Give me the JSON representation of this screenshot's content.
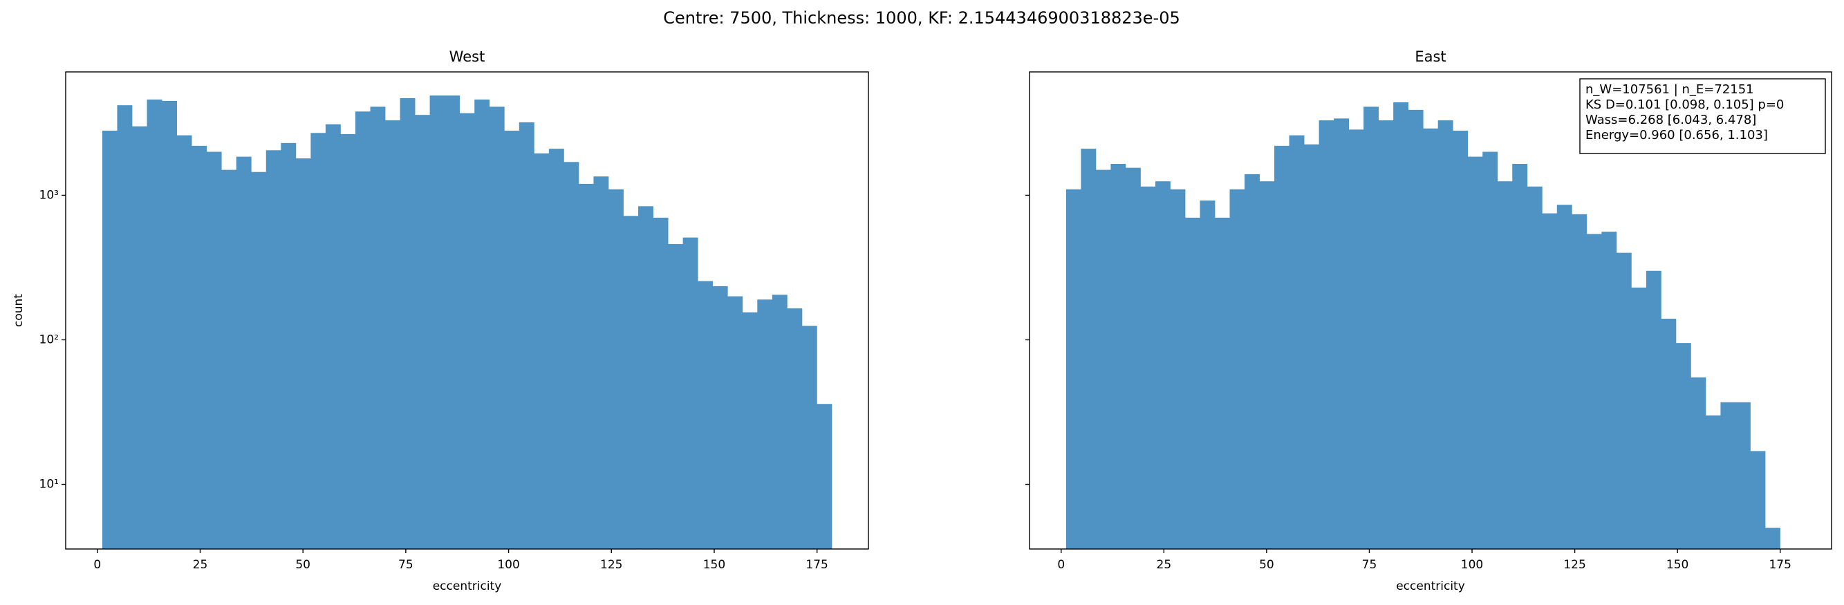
{
  "suptitle": "Centre: 7500, Thickness: 1000, KF: 2.1544346900318823e-05",
  "chart_data": [
    {
      "type": "histogram",
      "title": "West",
      "xlabel": "eccentricity",
      "ylabel": "count",
      "color": "#4e93c3",
      "log_y": true,
      "bins": [
        1.2,
        4.82,
        8.44,
        12.06,
        15.68,
        19.3,
        22.92,
        26.54,
        30.16,
        33.78,
        37.4,
        41.02,
        44.64,
        48.26,
        51.88,
        55.5,
        59.12,
        62.74,
        66.36,
        69.98,
        73.6,
        77.22,
        80.84,
        84.46,
        88.08,
        91.7,
        95.32,
        98.94,
        102.56,
        106.18,
        109.8,
        113.42,
        117.04,
        120.66,
        124.28,
        127.9,
        131.52,
        135.14,
        138.76,
        142.38,
        146.0,
        149.62,
        153.24,
        156.86,
        160.48,
        164.1,
        167.72,
        171.34,
        174.96,
        178.58
      ],
      "values": [
        2800,
        4200,
        3000,
        4600,
        4500,
        2600,
        2200,
        2000,
        1500,
        1850,
        1450,
        2050,
        2300,
        1800,
        2700,
        3100,
        2650,
        3800,
        4100,
        3300,
        4700,
        3600,
        4900,
        4900,
        3700,
        4600,
        4100,
        2800,
        3200,
        1950,
        2100,
        1700,
        1200,
        1350,
        1100,
        720,
        840,
        700,
        460,
        510,
        255,
        235,
        200,
        155,
        190,
        205,
        165,
        125,
        36
      ],
      "xlim": [
        -7.7,
        187.5
      ],
      "xticks": [
        0,
        25,
        50,
        75,
        100,
        125,
        150,
        175
      ],
      "ylim": [
        3.57,
        7140
      ],
      "yticks": [
        {
          "value": 10,
          "label": "10¹"
        },
        {
          "value": 100,
          "label": "10²"
        },
        {
          "value": 1000,
          "label": "10³"
        }
      ]
    },
    {
      "type": "histogram",
      "title": "East",
      "xlabel": "eccentricity",
      "color": "#4e93c3",
      "log_y": true,
      "bins": [
        1.2,
        4.82,
        8.44,
        12.06,
        15.68,
        19.3,
        22.92,
        26.54,
        30.16,
        33.78,
        37.4,
        41.02,
        44.64,
        48.26,
        51.88,
        55.5,
        59.12,
        62.74,
        66.36,
        69.98,
        73.6,
        77.22,
        80.84,
        84.46,
        88.08,
        91.7,
        95.32,
        98.94,
        102.56,
        106.18,
        109.8,
        113.42,
        117.04,
        120.66,
        124.28,
        127.9,
        131.52,
        135.14,
        138.76,
        142.38,
        146.0,
        149.62,
        153.24,
        156.86,
        160.48,
        164.1,
        167.72,
        171.34,
        174.96
      ],
      "values": [
        1100,
        2100,
        1500,
        1650,
        1550,
        1150,
        1250,
        1100,
        700,
        920,
        700,
        1100,
        1400,
        1250,
        2200,
        2600,
        2250,
        3300,
        3400,
        2850,
        4100,
        3300,
        4400,
        3900,
        2900,
        3300,
        2800,
        1850,
        2000,
        1250,
        1650,
        1150,
        750,
        860,
        740,
        540,
        560,
        400,
        230,
        300,
        140,
        95,
        55,
        30,
        37,
        37,
        17,
        5
      ],
      "xlim": [
        -7.7,
        187.5
      ],
      "xticks": [
        0,
        25,
        50,
        75,
        100,
        125,
        150,
        175
      ],
      "ylim": [
        3.57,
        7140
      ],
      "annotation": [
        "n_W=107561 | n_E=72151",
        "KS D=0.101 [0.098, 0.105]  p=0",
        "Wass=6.268 [6.043, 6.478]",
        "Energy=0.960 [0.656, 1.103]"
      ]
    }
  ]
}
